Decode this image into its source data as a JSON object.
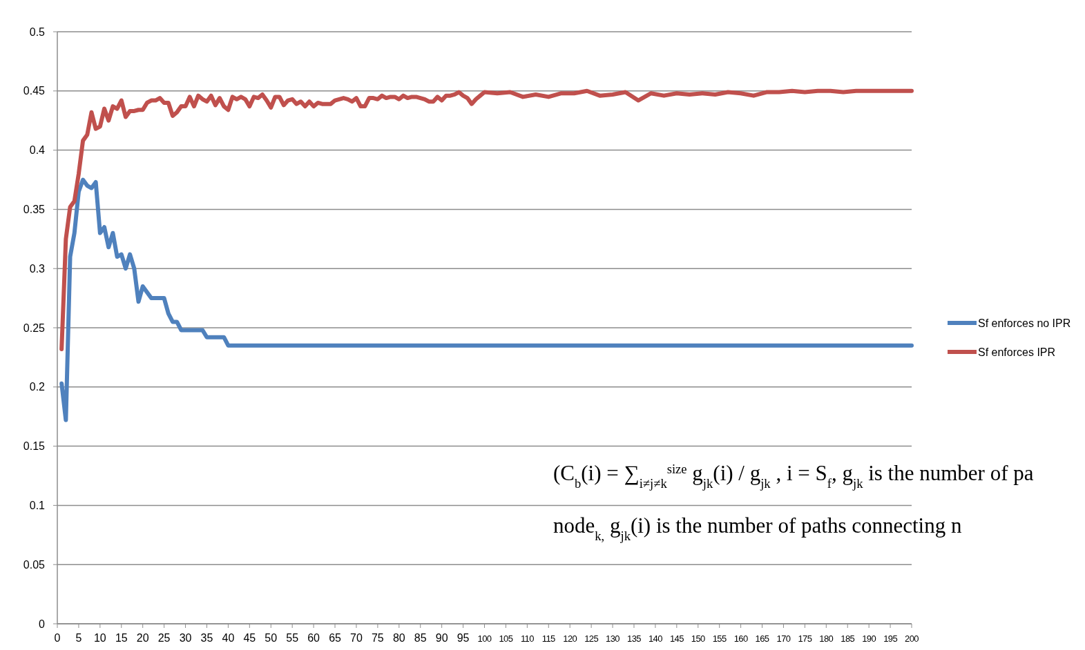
{
  "chart_data": {
    "type": "line",
    "xlim": [
      0,
      200
    ],
    "xticks": [
      0,
      5,
      10,
      15,
      20,
      25,
      30,
      35,
      40,
      45,
      50,
      55,
      60,
      65,
      70,
      75,
      80,
      85,
      90,
      95,
      100,
      105,
      110,
      115,
      120,
      125,
      130,
      135,
      140,
      145,
      150,
      155,
      160,
      165,
      170,
      175,
      180,
      185,
      190,
      195,
      200
    ],
    "ylim": [
      0,
      0.5
    ],
    "yticks": [
      0,
      0.05,
      0.1,
      0.15,
      0.2,
      0.25,
      0.3,
      0.35,
      0.4,
      0.45,
      0.5
    ],
    "grid": "y",
    "legend": "right",
    "line_style": "solid",
    "marker": "none",
    "series": [
      {
        "name": "Sf enforces no IPR",
        "color": "#4f81bd",
        "x": [
          1,
          2,
          3,
          4,
          5,
          6,
          7,
          8,
          9,
          10,
          11,
          12,
          13,
          14,
          15,
          16,
          17,
          18,
          19,
          20,
          21,
          22,
          23,
          24,
          25,
          26,
          27,
          28,
          29,
          30,
          31,
          32,
          33,
          34,
          35,
          36,
          37,
          38,
          39,
          40,
          200
        ],
        "values": [
          0.203,
          0.172,
          0.31,
          0.33,
          0.365,
          0.375,
          0.37,
          0.368,
          0.373,
          0.33,
          0.335,
          0.318,
          0.33,
          0.31,
          0.312,
          0.3,
          0.312,
          0.3,
          0.272,
          0.285,
          0.28,
          0.275,
          0.275,
          0.275,
          0.275,
          0.262,
          0.255,
          0.255,
          0.248,
          0.248,
          0.248,
          0.248,
          0.248,
          0.248,
          0.242,
          0.242,
          0.242,
          0.242,
          0.242,
          0.235,
          0.235
        ]
      },
      {
        "name": "Sf enforces IPR",
        "color": "#c0504d",
        "x": [
          1,
          2,
          3,
          4,
          5,
          6,
          7,
          8,
          9,
          10,
          11,
          12,
          13,
          14,
          15,
          16,
          17,
          18,
          19,
          20,
          21,
          22,
          23,
          24,
          25,
          26,
          27,
          28,
          29,
          30,
          31,
          32,
          33,
          34,
          35,
          36,
          37,
          38,
          39,
          40,
          41,
          42,
          43,
          44,
          45,
          46,
          47,
          48,
          49,
          50,
          51,
          52,
          53,
          54,
          55,
          56,
          57,
          58,
          59,
          60,
          61,
          62,
          63,
          64,
          65,
          66,
          67,
          68,
          69,
          70,
          71,
          72,
          73,
          74,
          75,
          76,
          77,
          78,
          79,
          80,
          81,
          82,
          83,
          84,
          85,
          86,
          87,
          88,
          89,
          90,
          91,
          92,
          93,
          94,
          95,
          96,
          97,
          98,
          99,
          100,
          103,
          106,
          109,
          112,
          115,
          118,
          121,
          124,
          127,
          130,
          133,
          136,
          139,
          142,
          145,
          148,
          151,
          154,
          157,
          160,
          163,
          166,
          169,
          172,
          175,
          178,
          181,
          184,
          187,
          190,
          200
        ],
        "values": [
          0.232,
          0.325,
          0.352,
          0.357,
          0.38,
          0.408,
          0.413,
          0.432,
          0.418,
          0.42,
          0.435,
          0.425,
          0.437,
          0.435,
          0.442,
          0.428,
          0.433,
          0.433,
          0.434,
          0.434,
          0.44,
          0.442,
          0.442,
          0.444,
          0.44,
          0.44,
          0.429,
          0.432,
          0.437,
          0.437,
          0.445,
          0.437,
          0.446,
          0.443,
          0.441,
          0.446,
          0.438,
          0.444,
          0.437,
          0.434,
          0.445,
          0.443,
          0.445,
          0.443,
          0.437,
          0.445,
          0.444,
          0.447,
          0.442,
          0.436,
          0.445,
          0.445,
          0.438,
          0.442,
          0.443,
          0.439,
          0.441,
          0.437,
          0.441,
          0.437,
          0.44,
          0.439,
          0.439,
          0.439,
          0.442,
          0.443,
          0.444,
          0.443,
          0.441,
          0.444,
          0.437,
          0.437,
          0.444,
          0.444,
          0.443,
          0.446,
          0.444,
          0.445,
          0.445,
          0.443,
          0.446,
          0.444,
          0.445,
          0.445,
          0.444,
          0.443,
          0.441,
          0.441,
          0.445,
          0.442,
          0.446,
          0.446,
          0.447,
          0.449,
          0.446,
          0.444,
          0.439,
          0.443,
          0.446,
          0.449,
          0.448,
          0.449,
          0.445,
          0.447,
          0.445,
          0.448,
          0.448,
          0.45,
          0.446,
          0.447,
          0.449,
          0.442,
          0.448,
          0.446,
          0.448,
          0.447,
          0.448,
          0.447,
          0.449,
          0.448,
          0.446,
          0.449,
          0.449,
          0.45,
          0.449,
          0.45,
          0.45,
          0.449,
          0.45,
          0.45,
          0.45
        ]
      }
    ],
    "annotations": [
      "(C$_{b}$(i) = ∑$_{i≠j≠k}$$^{size}$ g$_{jk}$(i) / g$_{jk}$ ,  i = S$_{f}$, g$_{jk}$ is the number of pa",
      "node$_{k,}$ g$_{jk}$(i) is the number of paths connecting n"
    ]
  }
}
